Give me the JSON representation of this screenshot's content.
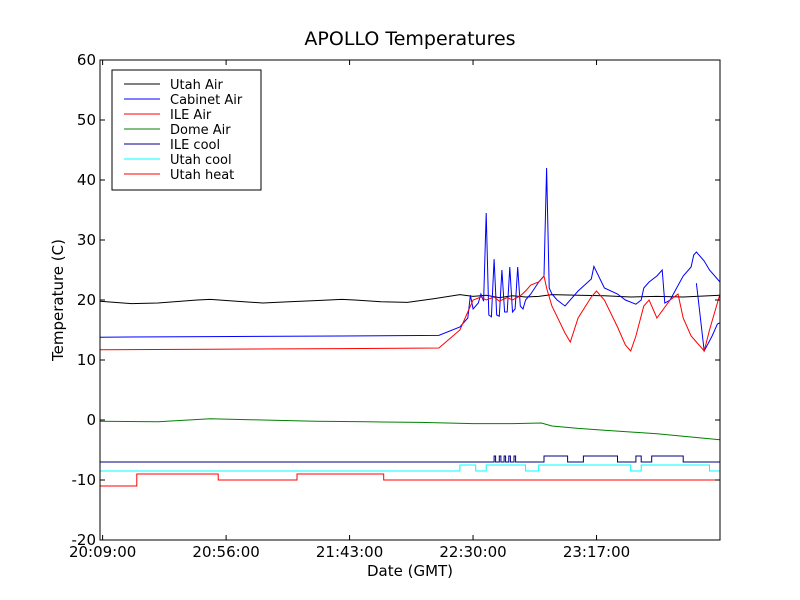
{
  "chart_data": {
    "type": "line",
    "title": "APOLLO Temperatures",
    "xlabel": "Date (GMT)",
    "ylabel": "Temperature (C)",
    "xlim": [
      8,
      244
    ],
    "ylim": [
      -20,
      60
    ],
    "x_ticks": [
      {
        "t": 9,
        "label": "20:09:00"
      },
      {
        "t": 56,
        "label": "20:56:00"
      },
      {
        "t": 103,
        "label": "21:43:00"
      },
      {
        "t": 150,
        "label": "22:30:00"
      },
      {
        "t": 197,
        "label": "23:17:00"
      }
    ],
    "y_ticks": [
      -20,
      -10,
      0,
      10,
      20,
      30,
      40,
      50,
      60
    ],
    "legend_position": "top-left",
    "grid": false,
    "series": [
      {
        "name": "Utah Air",
        "color": "#000000",
        "x": [
          8,
          20,
          30,
          45,
          50,
          60,
          70,
          80,
          90,
          100,
          105,
          115,
          125,
          135,
          145,
          150,
          155,
          160,
          165,
          170,
          175,
          180,
          190,
          200,
          210,
          220,
          230,
          244
        ],
        "y": [
          19.8,
          19.4,
          19.5,
          20.0,
          20.1,
          19.8,
          19.5,
          19.7,
          19.9,
          20.1,
          20.0,
          19.7,
          19.6,
          20.2,
          20.9,
          20.6,
          20.8,
          20.4,
          20.7,
          20.5,
          20.6,
          20.9,
          20.8,
          20.7,
          20.5,
          20.6,
          20.5,
          20.8
        ]
      },
      {
        "name": "Cabinet Air",
        "color": "#0000ff",
        "x": [
          8,
          50,
          100,
          137,
          145,
          148,
          149,
          150,
          152,
          153,
          154,
          155,
          156,
          157,
          158,
          159,
          160,
          161,
          162,
          163,
          164,
          165,
          166,
          167,
          168,
          169,
          170,
          171,
          172,
          175,
          177,
          178,
          179,
          180,
          182,
          185,
          190,
          195,
          196,
          200,
          205,
          208,
          212,
          214,
          215,
          217,
          220,
          222,
          223,
          225,
          230,
          233,
          234,
          235,
          238,
          240,
          244
        ],
        "y": [
          13.8,
          13.9,
          14.0,
          14.1,
          15.5,
          17.0,
          20.8,
          18.5,
          19.5,
          21.0,
          19.8,
          34.5,
          17.5,
          17.2,
          26.8,
          17.5,
          17.3,
          25.0,
          18.0,
          18.0,
          25.5,
          18.0,
          18.5,
          25.5,
          19.0,
          18.5,
          20.0,
          20.5,
          21.0,
          23.0,
          24.0,
          42.0,
          22.0,
          21.0,
          20.0,
          19.0,
          21.5,
          23.5,
          25.6,
          22.0,
          21.0,
          20.0,
          19.3,
          20.0,
          22.0,
          23.0,
          24.0,
          25.0,
          19.5,
          20.0,
          24.0,
          25.5,
          27.5,
          28.0,
          26.5,
          25.0,
          23.0
        ]
      },
      {
        "name": "Cabinet Air tail",
        "color": "#0000ff",
        "legend": false,
        "x": [
          235,
          238,
          241,
          243,
          244
        ],
        "y": [
          22.8,
          11.5,
          14.0,
          16.0,
          16.2
        ]
      },
      {
        "name": "ILE Air",
        "color": "#ff0000",
        "x": [
          8,
          50,
          100,
          137,
          145,
          148,
          150,
          153,
          155,
          158,
          160,
          163,
          165,
          168,
          170,
          172,
          175,
          177,
          178,
          180,
          185,
          187,
          190,
          195,
          197,
          200,
          205,
          208,
          210,
          212,
          215,
          217,
          220,
          225,
          228,
          230,
          233,
          235,
          238,
          240,
          244
        ],
        "y": [
          11.7,
          11.8,
          11.9,
          12.0,
          15.0,
          18.0,
          20.0,
          20.5,
          20.0,
          20.5,
          19.8,
          20.4,
          20.0,
          20.7,
          21.5,
          22.5,
          23.0,
          24.0,
          22.0,
          19.0,
          14.5,
          13.0,
          17.0,
          20.5,
          21.5,
          20.0,
          15.5,
          12.5,
          11.5,
          14.0,
          19.0,
          20.0,
          17.0,
          20.0,
          21.0,
          17.0,
          14.0,
          13.0,
          11.5,
          15.0,
          21.0
        ]
      },
      {
        "name": "Dome Air",
        "color": "#008000",
        "x": [
          8,
          30,
          50,
          70,
          90,
          110,
          130,
          150,
          165,
          176,
          180,
          190,
          200,
          210,
          220,
          230,
          244
        ],
        "y": [
          -0.2,
          -0.3,
          0.2,
          0.0,
          -0.2,
          -0.3,
          -0.4,
          -0.6,
          -0.6,
          -0.5,
          -1.0,
          -1.4,
          -1.7,
          -2.0,
          -2.3,
          -2.7,
          -3.3
        ]
      },
      {
        "name": "ILE cool",
        "color": "#000080",
        "x": [
          8,
          158,
          158,
          158.6,
          158.6,
          160,
          160,
          160.6,
          160.6,
          161.8,
          161.8,
          162.4,
          162.4,
          163.6,
          163.6,
          164.2,
          164.2,
          165.6,
          165.6,
          166.2,
          166.2,
          177,
          177,
          186,
          186,
          192,
          192,
          205,
          205,
          212,
          212,
          214,
          214,
          218,
          218,
          230,
          230,
          244
        ],
        "y": [
          -7,
          -7,
          -6,
          -6,
          -7,
          -7,
          -6,
          -6,
          -7,
          -7,
          -6,
          -6,
          -7,
          -7,
          -6,
          -6,
          -7,
          -7,
          -6,
          -6,
          -7,
          -7,
          -6,
          -6,
          -7,
          -7,
          -6,
          -6,
          -7,
          -7,
          -6,
          -6,
          -7,
          -7,
          -6,
          -6,
          -7,
          -7
        ]
      },
      {
        "name": "Utah cool",
        "color": "#00ffff",
        "x": [
          8,
          145,
          145,
          151,
          151,
          155,
          155,
          170,
          170,
          175,
          175,
          210,
          210,
          214,
          214,
          240,
          240,
          244
        ],
        "y": [
          -8.5,
          -8.5,
          -7.5,
          -7.5,
          -8.5,
          -8.5,
          -7.5,
          -7.5,
          -8.5,
          -8.5,
          -7.5,
          -7.5,
          -8.5,
          -8.5,
          -7.5,
          -7.5,
          -8.5,
          -8.5
        ]
      },
      {
        "name": "Utah heat",
        "color": "#ff0000",
        "x": [
          8,
          22,
          22,
          53,
          53,
          83,
          83,
          116,
          116,
          244
        ],
        "y": [
          -11,
          -11,
          -9,
          -9,
          -10,
          -10,
          -9,
          -9,
          -10,
          -10
        ]
      }
    ]
  }
}
